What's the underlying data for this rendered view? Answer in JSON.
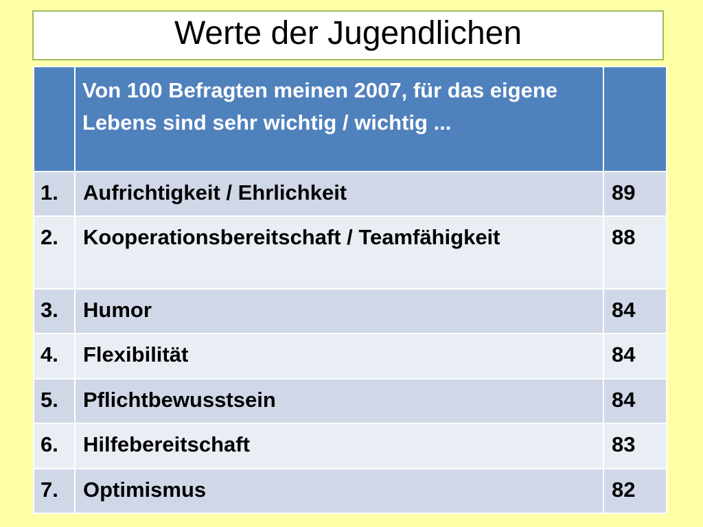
{
  "title": "Werte der Jugendlichen",
  "table": {
    "header": {
      "col1": "",
      "col2": "Von 100 Befragten meinen 2007, für das eigene Lebens sind sehr wichtig / wichtig ...",
      "col3": ""
    },
    "rows": [
      {
        "rank": "1.",
        "label": "Aufrichtigkeit / Ehrlichkeit",
        "value": "89"
      },
      {
        "rank": "2.",
        "label": "Kooperationsbereitschaft / Teamfähigkeit",
        "value": "88"
      },
      {
        "rank": "3.",
        "label": "Humor",
        "value": "84"
      },
      {
        "rank": "4.",
        "label": "Flexibilität",
        "value": "84"
      },
      {
        "rank": "5.",
        "label": "Pflichtbewusstsein",
        "value": "84"
      },
      {
        "rank": "6.",
        "label": "Hilfebereitschaft",
        "value": "83"
      },
      {
        "rank": "7.",
        "label": "Optimismus",
        "value": "82"
      }
    ]
  },
  "colors": {
    "background": "#ffffa8",
    "header_fill": "#4f81bd",
    "row_fill_a": "#d0d8e8",
    "row_fill_b": "#e9edf4",
    "title_border": "#9bbb59"
  }
}
